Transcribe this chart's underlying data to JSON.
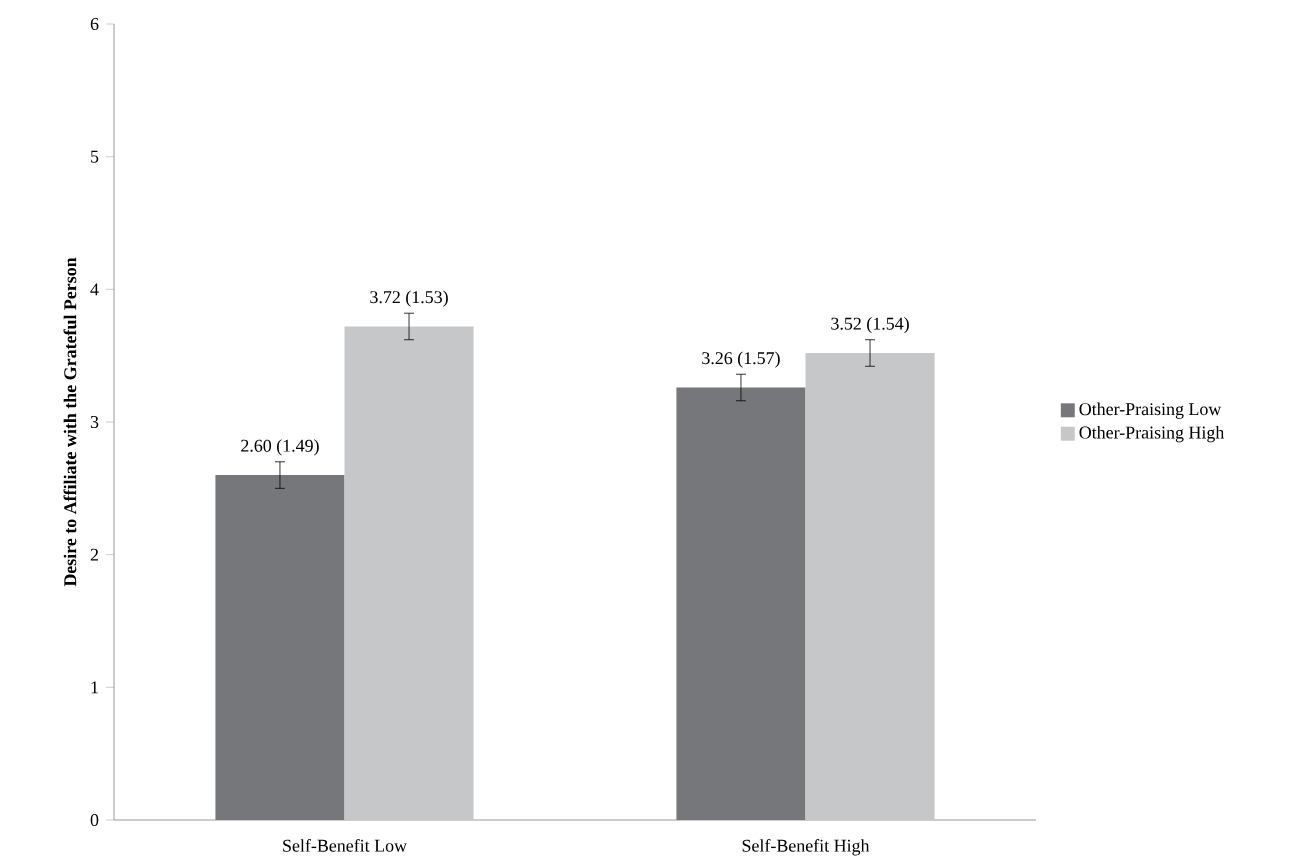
{
  "chart_data": {
    "type": "bar",
    "ylabel": "**Desire to Affiliate with the Grateful Person**",
    "categories": [
      "Self-Benefit Low",
      "Self-Benefit High"
    ],
    "series": [
      {
        "name": "Other-Praising Low",
        "color": "#76777b",
        "values": [
          2.6,
          3.26
        ],
        "errors": [
          0.1,
          0.1
        ],
        "value_labels": [
          "2.60 (1.49)",
          "3.26 (1.57)"
        ]
      },
      {
        "name": "Other-Praising High",
        "color": "#c6c7c9",
        "values": [
          3.72,
          3.52
        ],
        "errors": [
          0.1,
          0.1
        ],
        "value_labels": [
          "3.72 (1.53)",
          "3.52 (1.54)"
        ]
      }
    ],
    "ylim": [
      0,
      6
    ],
    "yticks": [
      0,
      1,
      2,
      3,
      4,
      5,
      6
    ],
    "grid": false,
    "legend": "right"
  }
}
